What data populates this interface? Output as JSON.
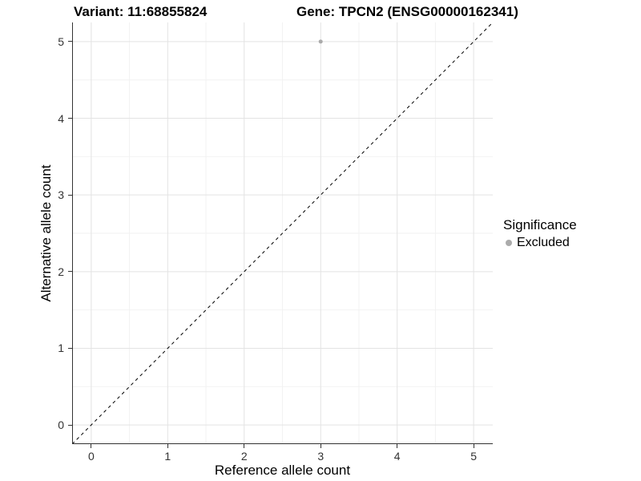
{
  "titles": {
    "variant": "Variant: 11:68855824",
    "gene": "Gene: TPCN2 (ENSG00000162341)"
  },
  "axes": {
    "x": {
      "label": "Reference allele count",
      "tick_labels": [
        "0",
        "1",
        "2",
        "3",
        "4",
        "5"
      ]
    },
    "y": {
      "label": "Alternative allele count",
      "tick_labels": [
        "0",
        "1",
        "2",
        "3",
        "4",
        "5"
      ]
    }
  },
  "legend": {
    "title": "Significance",
    "items": [
      {
        "label": "Excluded",
        "color": "#ababab"
      }
    ]
  },
  "colors": {
    "axis_line": "#333333",
    "grid_major": "#e3e3e3",
    "grid_minor": "#f2f2f2",
    "reference_line": "#000000",
    "tick_text": "#333333",
    "point": "#ababab",
    "background": "#ffffff"
  },
  "chart_data": {
    "type": "scatter",
    "title_left": "Variant: 11:68855824",
    "title_right": "Gene: TPCN2 (ENSG00000162341)",
    "xlabel": "Reference allele count",
    "ylabel": "Alternative allele count",
    "xlim": [
      -0.25,
      5.25
    ],
    "ylim": [
      -0.25,
      5.25
    ],
    "x_ticks": [
      0,
      1,
      2,
      3,
      4,
      5
    ],
    "y_ticks": [
      0,
      1,
      2,
      3,
      4,
      5
    ],
    "grid": {
      "major": true,
      "minor": true
    },
    "legend_position": "right",
    "legend_title": "Significance",
    "series": [
      {
        "name": "Excluded",
        "color": "#ababab",
        "marker_radius": 2.5,
        "points": [
          [
            3,
            5
          ]
        ]
      }
    ],
    "reference_line": {
      "kind": "identity",
      "equation": "y = x",
      "style": "dashed",
      "color": "#000000"
    }
  }
}
